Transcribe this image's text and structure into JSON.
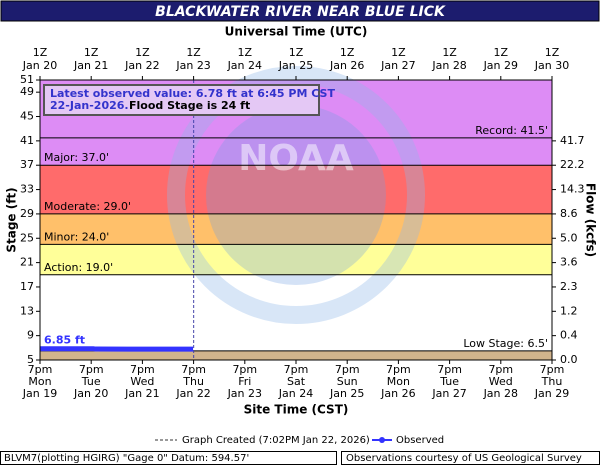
{
  "chart_data": {
    "type": "line",
    "title": "BLACKWATER RIVER NEAR BLUE LICK",
    "top_axis_label": "Universal Time (UTC)",
    "xlabel": "Site Time (CST)",
    "ylabel": "Stage (ft)",
    "y2label": "Flow (kcfs)",
    "ylim": [
      5,
      51
    ],
    "yticks": [
      5,
      9,
      13,
      17,
      21,
      25,
      29,
      33,
      37,
      41,
      45,
      49,
      51
    ],
    "y2ticks": [
      {
        "value": 0,
        "label": "0.0",
        "stage": 5
      },
      {
        "value": 0.4,
        "stage": 9
      },
      {
        "value": 1.2,
        "stage": 13
      },
      {
        "value": 2.3,
        "stage": 17
      },
      {
        "value": 3.6,
        "stage": 21
      },
      {
        "value": 5,
        "label": "5.0",
        "stage": 25
      },
      {
        "value": 8.6,
        "stage": 29
      },
      {
        "value": 14.3,
        "stage": 33
      },
      {
        "value": 22.2,
        "stage": 37
      },
      {
        "value": 41.7,
        "stage": 41
      }
    ],
    "xticks_utc": [
      {
        "time": "1Z",
        "date": "Jan 20"
      },
      {
        "time": "1Z",
        "date": "Jan 21"
      },
      {
        "time": "1Z",
        "date": "Jan 22"
      },
      {
        "time": "1Z",
        "date": "Jan 23"
      },
      {
        "time": "1Z",
        "date": "Jan 24"
      },
      {
        "time": "1Z",
        "date": "Jan 25"
      },
      {
        "time": "1Z",
        "date": "Jan 26"
      },
      {
        "time": "1Z",
        "date": "Jan 27"
      },
      {
        "time": "1Z",
        "date": "Jan 28"
      },
      {
        "time": "1Z",
        "date": "Jan 29"
      },
      {
        "time": "1Z",
        "date": "Jan 30"
      }
    ],
    "xticks_local": [
      {
        "time": "7pm",
        "day": "Mon",
        "date": "Jan 19"
      },
      {
        "time": "7pm",
        "day": "Tue",
        "date": "Jan 20"
      },
      {
        "time": "7pm",
        "day": "Wed",
        "date": "Jan 21"
      },
      {
        "time": "7pm",
        "day": "Thu",
        "date": "Jan 22"
      },
      {
        "time": "7pm",
        "day": "Fri",
        "date": "Jan 23"
      },
      {
        "time": "7pm",
        "day": "Sat",
        "date": "Jan 24"
      },
      {
        "time": "7pm",
        "day": "Sun",
        "date": "Jan 25"
      },
      {
        "time": "7pm",
        "day": "Mon",
        "date": "Jan 26"
      },
      {
        "time": "7pm",
        "day": "Tue",
        "date": "Jan 27"
      },
      {
        "time": "7pm",
        "day": "Wed",
        "date": "Jan 28"
      },
      {
        "time": "7pm",
        "day": "Thu",
        "date": "Jan 29"
      }
    ],
    "flood_categories": [
      {
        "label": "Record: 41.5'",
        "value": 41.5,
        "side": "right"
      },
      {
        "label": "Major: 37.0'",
        "value": 37,
        "color": "#dd8cf5",
        "side": "left"
      },
      {
        "label": "Moderate: 29.0'",
        "value": 29,
        "color": "#ff6b6b",
        "side": "left"
      },
      {
        "label": "Minor: 24.0'",
        "value": 24,
        "color": "#ffc06a",
        "side": "left"
      },
      {
        "label": "Action: 19.0'",
        "value": 19,
        "color": "#ffff99",
        "side": "left"
      },
      {
        "label": "Low Stage: 6.5'",
        "value": 6.5,
        "below_color": "#d2b48c",
        "side": "right"
      }
    ],
    "series": [
      {
        "name": "Observed",
        "color": "#3333ff",
        "x": [
          "Jan 19 7pm",
          "Jan 20 8pm",
          "Jan 20 9pm",
          "Jan 22 6:45pm"
        ],
        "values": [
          6.85,
          6.85,
          6.8,
          6.78
        ]
      }
    ],
    "start_label": "6.85 ft",
    "graph_created": {
      "label": "Graph Created (7:02PM Jan 22, 2026)",
      "x": "Jan 22 7:02pm"
    },
    "info_box": {
      "line1": "Latest observed value: 6.78 ft at 6:45 PM CST",
      "line2a": "22-Jan-2026.",
      "line2b": "Flood Stage is 24 ft"
    },
    "watermark": "NOAA",
    "footer_left": "BLVM7(plotting HGIRG) \"Gage 0\" Datum: 594.57'",
    "footer_right": "Observations courtesy of US Geological Survey"
  }
}
